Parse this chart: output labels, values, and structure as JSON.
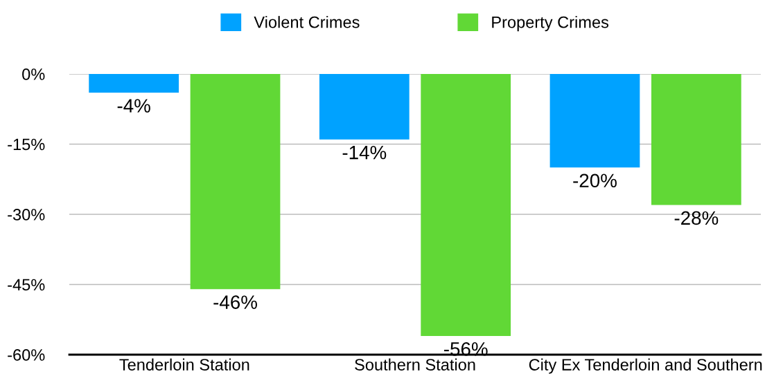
{
  "chart_data": {
    "type": "bar",
    "categories": [
      "Tenderloin Station",
      "Southern Station",
      "City Ex Tenderloin and Southern"
    ],
    "series": [
      {
        "name": "Violent Crimes",
        "color": "#00a2ff",
        "values": [
          -4,
          -14,
          -20
        ],
        "value_labels": [
          "-4%",
          "-14%",
          "-20%"
        ]
      },
      {
        "name": "Property Crimes",
        "color": "#61d836",
        "values": [
          -46,
          -56,
          -28
        ],
        "value_labels": [
          "-46%",
          "-56%",
          "-28%"
        ]
      }
    ],
    "ylim": [
      -60,
      0
    ],
    "yticks": [
      {
        "value": 0,
        "label": "0%"
      },
      {
        "value": -15,
        "label": "-15%"
      },
      {
        "value": -30,
        "label": "-30%"
      },
      {
        "value": -45,
        "label": "-45%"
      },
      {
        "value": -60,
        "label": "-60%"
      }
    ],
    "grid": "y",
    "legend": "top"
  }
}
